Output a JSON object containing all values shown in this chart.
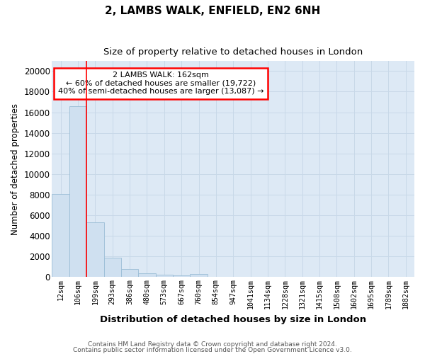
{
  "title1": "2, LAMBS WALK, ENFIELD, EN2 6NH",
  "title2": "Size of property relative to detached houses in London",
  "xlabel": "Distribution of detached houses by size in London",
  "ylabel": "Number of detached properties",
  "categories": [
    "12sqm",
    "106sqm",
    "199sqm",
    "293sqm",
    "386sqm",
    "480sqm",
    "573sqm",
    "667sqm",
    "760sqm",
    "854sqm",
    "947sqm",
    "1041sqm",
    "1134sqm",
    "1228sqm",
    "1321sqm",
    "1415sqm",
    "1508sqm",
    "1602sqm",
    "1695sqm",
    "1789sqm",
    "1882sqm"
  ],
  "values": [
    8100,
    16600,
    5300,
    1850,
    800,
    350,
    200,
    150,
    300,
    0,
    0,
    0,
    0,
    0,
    0,
    0,
    0,
    0,
    0,
    0,
    0
  ],
  "bar_color": "#cfe0f0",
  "bar_edge_color": "#9bbdd6",
  "red_line_bar_idx": 1,
  "annotation_text": "2 LAMBS WALK: 162sqm\n← 60% of detached houses are smaller (19,722)\n40% of semi-detached houses are larger (13,087) →",
  "annotation_box_color": "white",
  "annotation_box_edge": "red",
  "ylim": [
    0,
    21000
  ],
  "yticks": [
    0,
    2000,
    4000,
    6000,
    8000,
    10000,
    12000,
    14000,
    16000,
    18000,
    20000
  ],
  "footer1": "Contains HM Land Registry data © Crown copyright and database right 2024.",
  "footer2": "Contains public sector information licensed under the Open Government Licence v3.0.",
  "grid_color": "#c8d8e8",
  "bg_color": "#dde9f5",
  "fig_bg_color": "#ffffff"
}
